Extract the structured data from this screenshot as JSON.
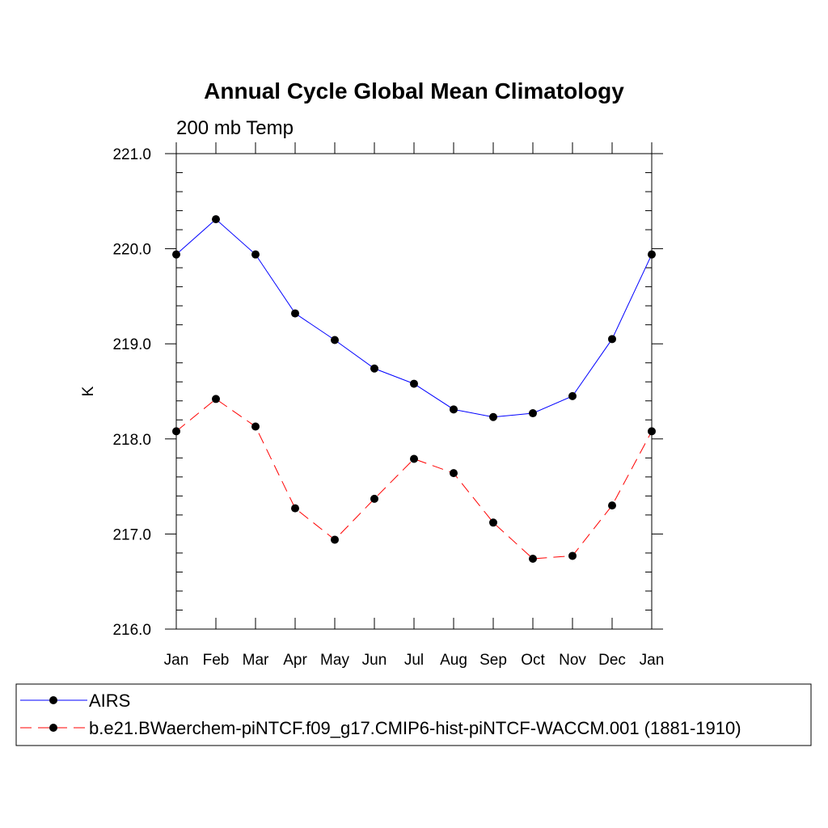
{
  "chart_data": {
    "type": "line",
    "title": "Annual Cycle Global Mean Climatology",
    "subtitle": "200 mb Temp",
    "ylabel": "K",
    "xlabel": "",
    "categories": [
      "Jan",
      "Feb",
      "Mar",
      "Apr",
      "May",
      "Jun",
      "Jul",
      "Aug",
      "Sep",
      "Oct",
      "Nov",
      "Dec",
      "Jan"
    ],
    "ylim": [
      216.0,
      221.0
    ],
    "yticks": [
      "216.0",
      "217.0",
      "218.0",
      "219.0",
      "220.0",
      "221.0"
    ],
    "grid": false,
    "legend_position": "bottom",
    "series": [
      {
        "name": "AIRS",
        "color": "#0000ff",
        "line_style": "solid",
        "marker": "filled-circle",
        "values": [
          219.94,
          220.31,
          219.94,
          219.32,
          219.04,
          218.74,
          218.58,
          218.31,
          218.23,
          218.27,
          218.45,
          219.05,
          219.94
        ]
      },
      {
        "name": "b.e21.BWaerchem-piNTCF.f09_g17.CMIP6-hist-piNTCF-WACCM.001 (1881-1910)",
        "color": "#ff0000",
        "line_style": "dashed",
        "marker": "filled-circle",
        "values": [
          218.08,
          218.42,
          218.13,
          217.27,
          216.94,
          217.37,
          217.79,
          217.64,
          217.12,
          216.74,
          216.77,
          217.3,
          218.08
        ]
      }
    ]
  }
}
